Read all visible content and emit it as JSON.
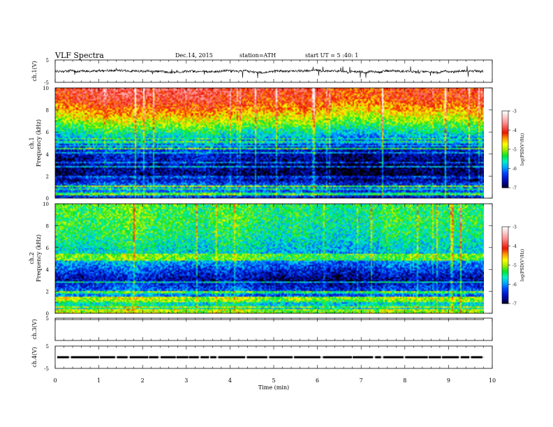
{
  "header": {
    "title": "VLF  Spectra",
    "date": "Dec.14, 2015",
    "station": "station=ATH",
    "start": "start  UT  =   5  :40: 1"
  },
  "colorbar": {
    "label": "log(PSD(V²/Hz)",
    "ticks": [
      "-3",
      "-4",
      "-5",
      "-6",
      "-7"
    ],
    "colors": [
      "#ffffff",
      "#ff8080",
      "#e00000",
      "#ff8000",
      "#ffff00",
      "#a0e000",
      "#00e000",
      "#00ffc0",
      "#00a0ff",
      "#0030ff",
      "#000080",
      "#000000"
    ]
  },
  "chart_data": [
    {
      "type": "line",
      "name": "ch1-voltage",
      "ylabel": "ch.1(V)",
      "xlim": [
        0,
        10
      ],
      "ylim": [
        -5,
        5
      ],
      "yticks": [
        "5",
        "-5"
      ],
      "x_end_min": 9.8,
      "mean_value": 0.0,
      "noise_amplitude": 0.5,
      "description": "continuous noisy signal centered near 0 V with frequent spikes"
    },
    {
      "type": "heatmap",
      "name": "ch1-spectrogram",
      "ylabel": "Frequency  (kHz)",
      "ylabel_channel": "ch.1",
      "xlim": [
        0,
        10
      ],
      "ylim": [
        0,
        10
      ],
      "yticks": [
        "10",
        "8",
        "6",
        "4",
        "2",
        "0"
      ],
      "value_range": [
        -7,
        -3
      ],
      "x_end_min": 9.8,
      "log_psd_profile": [
        {
          "f": 0.0,
          "v": -6.4
        },
        {
          "f": 0.5,
          "v": -6.2
        },
        {
          "f": 1.0,
          "v": -6.1
        },
        {
          "f": 1.5,
          "v": -6.6
        },
        {
          "f": 2.0,
          "v": -6.9
        },
        {
          "f": 3.0,
          "v": -6.8
        },
        {
          "f": 4.0,
          "v": -6.6
        },
        {
          "f": 5.0,
          "v": -6.2
        },
        {
          "f": 6.0,
          "v": -5.6
        },
        {
          "f": 7.0,
          "v": -5.0
        },
        {
          "f": 8.0,
          "v": -4.5
        },
        {
          "f": 9.0,
          "v": -4.1
        },
        {
          "f": 10.0,
          "v": -4.0
        }
      ]
    },
    {
      "type": "heatmap",
      "name": "ch2-spectrogram",
      "ylabel": "Frequency  (kHz)",
      "ylabel_channel": "ch.2",
      "xlim": [
        0,
        10
      ],
      "ylim": [
        0,
        10
      ],
      "yticks": [
        "10",
        "8",
        "6",
        "4",
        "2",
        "0"
      ],
      "value_range": [
        -7,
        -3
      ],
      "x_end_min": 9.8,
      "log_psd_profile": [
        {
          "f": 0.0,
          "v": -5.6
        },
        {
          "f": 0.5,
          "v": -5.5
        },
        {
          "f": 1.0,
          "v": -5.6
        },
        {
          "f": 1.5,
          "v": -6.0
        },
        {
          "f": 2.0,
          "v": -6.1
        },
        {
          "f": 2.5,
          "v": -6.3
        },
        {
          "f": 3.0,
          "v": -6.6
        },
        {
          "f": 4.0,
          "v": -6.2
        },
        {
          "f": 5.0,
          "v": -5.7
        },
        {
          "f": 6.0,
          "v": -5.6
        },
        {
          "f": 7.0,
          "v": -5.4
        },
        {
          "f": 8.0,
          "v": -5.3
        },
        {
          "f": 10.0,
          "v": -5.2
        }
      ]
    },
    {
      "type": "line",
      "name": "ch3-voltage",
      "ylabel": "ch.3(V)",
      "xlim": [
        0,
        10
      ],
      "ylim": [
        -5,
        5
      ],
      "yticks": [
        "5"
      ],
      "description": "flat trace"
    },
    {
      "type": "line",
      "name": "ch4-voltage",
      "ylabel": "ch.4(V)",
      "xlim": [
        0,
        10
      ],
      "ylim": [
        -5,
        5
      ],
      "yticks": [
        "5",
        "-5"
      ],
      "x_end_min": 9.8,
      "mean_value": 0.0,
      "description": "near-constant trace around 0 V with short gaps"
    }
  ],
  "xaxis": {
    "label": "Time  (min)",
    "ticks": [
      "0",
      "1",
      "2",
      "3",
      "4",
      "5",
      "6",
      "7",
      "8",
      "9",
      "10"
    ]
  }
}
